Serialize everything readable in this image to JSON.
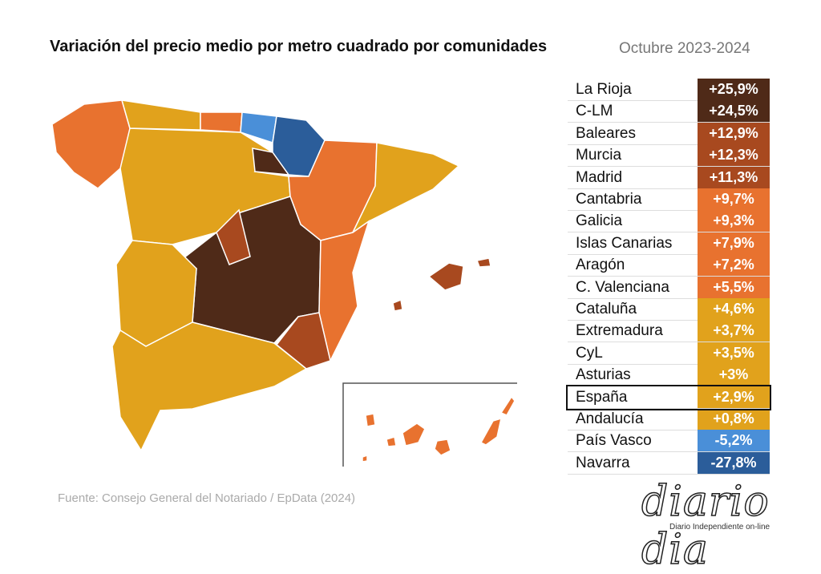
{
  "header": {
    "title": "Variación del precio medio por metro cuadrado por comunidades",
    "subtitle": "Octubre 2023-2024"
  },
  "table": {
    "highlight": "España",
    "rows": [
      {
        "name": "La Rioja",
        "value": "+25,9%",
        "color": "#4f2a18"
      },
      {
        "name": "C-LM",
        "value": "+24,5%",
        "color": "#4f2a18"
      },
      {
        "name": "Baleares",
        "value": "+12,9%",
        "color": "#a8491f"
      },
      {
        "name": "Murcia",
        "value": "+12,3%",
        "color": "#a8491f"
      },
      {
        "name": "Madrid",
        "value": "+11,3%",
        "color": "#a8491f"
      },
      {
        "name": "Cantabria",
        "value": "+9,7%",
        "color": "#e8722f"
      },
      {
        "name": "Galicia",
        "value": "+9,3%",
        "color": "#e8722f"
      },
      {
        "name": "Islas Canarias",
        "value": "+7,9%",
        "color": "#e8722f"
      },
      {
        "name": "Aragón",
        "value": "+7,2%",
        "color": "#e8722f"
      },
      {
        "name": "C. Valenciana",
        "value": "+5,5%",
        "color": "#e8722f"
      },
      {
        "name": "Cataluña",
        "value": "+4,6%",
        "color": "#e1a21c"
      },
      {
        "name": "Extremadura",
        "value": "+3,7%",
        "color": "#e1a21c"
      },
      {
        "name": "CyL",
        "value": "+3,5%",
        "color": "#e1a21c"
      },
      {
        "name": "Asturias",
        "value": "+3%",
        "color": "#e1a21c"
      },
      {
        "name": "España",
        "value": "+2,9%",
        "color": "#e1a21c"
      },
      {
        "name": "Andalucía",
        "value": "+0,8%",
        "color": "#e1a21c"
      },
      {
        "name": "País Vasco",
        "value": "-5,2%",
        "color": "#4a8fd8"
      },
      {
        "name": "Navarra",
        "value": "-27,8%",
        "color": "#2b5d9a"
      }
    ]
  },
  "footer": {
    "source": "Fuente: Consejo General del Notariado / EpData (2024)"
  },
  "logo": {
    "name": "diario dia",
    "tagline": "Diario Independiente on-line"
  }
}
